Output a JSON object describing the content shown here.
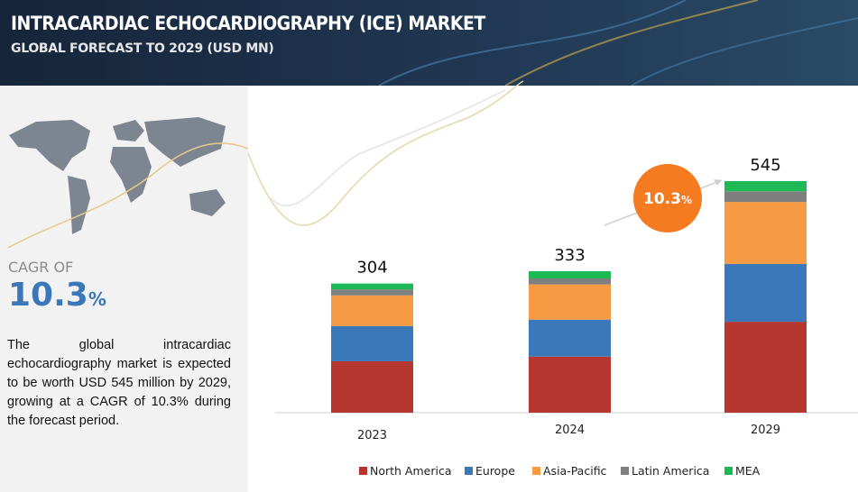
{
  "header": {
    "title": "INTRACARDIAC ECHOCARDIOGRAPHY (ICE) MARKET",
    "subtitle": "GLOBAL FORECAST TO 2029 (USD MN)"
  },
  "sidebar": {
    "cagr_label": "CAGR OF",
    "cagr_value": "10.3",
    "cagr_unit": "%",
    "description": "The global intracardiac echocardiography market is expected to be worth USD 545 million by 2029, growing at a CAGR of 10.3% during the forecast period."
  },
  "chart_data": {
    "type": "stacked_bar",
    "categories": [
      "2023",
      "2024",
      "2029"
    ],
    "totals": [
      304,
      333,
      545
    ],
    "series": [
      {
        "name": "North America",
        "color": "#b5372f",
        "values": [
          121,
          132,
          214
        ]
      },
      {
        "name": "Europe",
        "color": "#3a78b9",
        "values": [
          83,
          87,
          136
        ]
      },
      {
        "name": "Asia-Pacific",
        "color": "#f79a44",
        "values": [
          72,
          83,
          146
        ]
      },
      {
        "name": "Latin America",
        "color": "#7f7f7f",
        "values": [
          14,
          14,
          25
        ]
      },
      {
        "name": "MEA",
        "color": "#1db954",
        "values": [
          14,
          17,
          24
        ]
      }
    ],
    "annotation": {
      "value": "10.3",
      "unit": "%"
    }
  }
}
